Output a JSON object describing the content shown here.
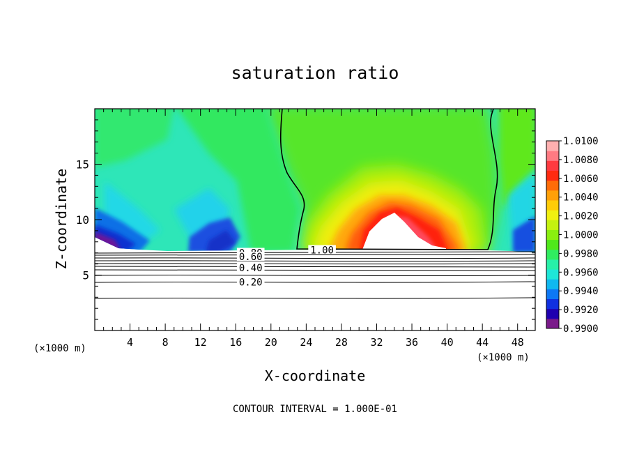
{
  "chart_data": {
    "type": "heatmap",
    "title": "saturation ratio",
    "xlabel": "X-coordinate",
    "ylabel": "Z-coordinate",
    "x_unit_left": "(×1000 m)",
    "x_unit_right": "(×1000 m)",
    "xlim": [
      0,
      50
    ],
    "ylim": [
      0,
      20
    ],
    "x_ticks": [
      "4",
      "8",
      "12",
      "16",
      "20",
      "24",
      "28",
      "32",
      "36",
      "40",
      "44",
      "48"
    ],
    "x_tick_values": [
      4,
      8,
      12,
      16,
      20,
      24,
      28,
      32,
      36,
      40,
      44,
      48
    ],
    "y_ticks": [
      "5",
      "10",
      "15"
    ],
    "y_tick_values": [
      5,
      10,
      15
    ],
    "colorbar": {
      "labels": [
        "1.0100",
        "1.0080",
        "1.0060",
        "1.0040",
        "1.0020",
        "1.0000",
        "0.9980",
        "0.9960",
        "0.9940",
        "0.9920",
        "0.9900"
      ],
      "min": 0.99,
      "max": 1.01,
      "colors": [
        "#7a1a8a",
        "#1f00b0",
        "#1030e0",
        "#0e78f5",
        "#10b8f0",
        "#1ee6d8",
        "#28f0a8",
        "#30ec60",
        "#4fe81a",
        "#8aef10",
        "#c4f210",
        "#f0f010",
        "#ffcc08",
        "#ffa008",
        "#ff6c08",
        "#ff2a10",
        "#ff3a40",
        "#ff7a82",
        "#ffb0b0"
      ]
    },
    "contours": [
      {
        "label": "1.00",
        "label_x": 25.8,
        "label_z": 7.2,
        "z": null
      },
      {
        "label": "0.80",
        "label_x": 17.7,
        "label_z": 6.95,
        "z": 6.95
      },
      {
        "label": "0.60",
        "label_x": 17.7,
        "label_z": 6.6,
        "z": 6.6
      },
      {
        "label": "0.40",
        "label_x": 17.7,
        "label_z": 5.6,
        "z": 5.55
      },
      {
        "label": "0.20",
        "label_x": 17.7,
        "label_z": 4.3,
        "z": 4.4
      }
    ],
    "footnote": "CONTOUR INTERVAL = 1.000E-01"
  }
}
